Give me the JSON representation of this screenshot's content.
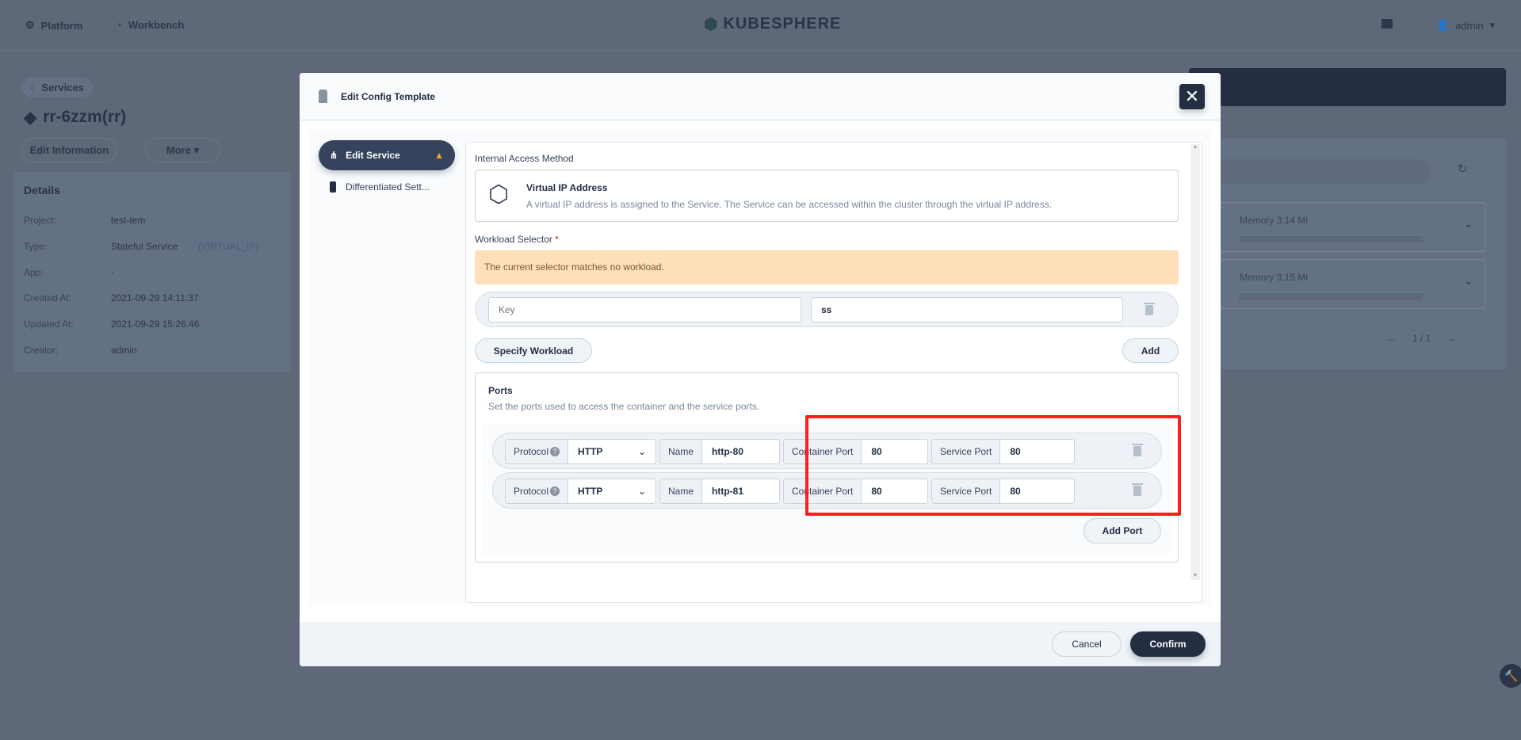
{
  "topbar": {
    "platform": "Platform",
    "workbench": "Workbench",
    "logo": "KUBESPHERE",
    "user": "admin"
  },
  "page": {
    "back": "Services",
    "title": "rr-6zzm(rr)",
    "edit_info": "Edit Information",
    "more": "More",
    "details_title": "Details",
    "details": [
      {
        "k": "Project:",
        "v": "test-tem"
      },
      {
        "k": "Type:",
        "v": "Stateful Service",
        "v2": "(VIRTUAL_IP)"
      },
      {
        "k": "App:",
        "v": "-"
      },
      {
        "k": "Created At:",
        "v": "2021-09-29 14:11:37"
      },
      {
        "k": "Updated At:",
        "v": "2021-09-29 15:26:46"
      },
      {
        "k": "Creator:",
        "v": "admin"
      }
    ],
    "pods": [
      {
        "memory": "Memory 3.14 Mi"
      },
      {
        "memory": "Memory 3.15 Mi"
      }
    ],
    "pagination": "1 / 1"
  },
  "modal": {
    "title": "Edit Config Template",
    "nav": [
      {
        "label": "Edit Service",
        "active": true,
        "warning": true
      },
      {
        "label": "Differentiated Sett..."
      }
    ],
    "access_label": "Internal Access Method",
    "access_title": "Virtual IP Address",
    "access_desc": "A virtual IP address is assigned to the Service. The Service can be accessed within the cluster through the virtual IP address.",
    "selector_label": "Workload Selector",
    "required": "*",
    "warning": "The current selector matches no workload.",
    "selector": {
      "key_placeholder": "Key",
      "value": "ss"
    },
    "specify": "Specify Workload",
    "add": "Add",
    "ports_title": "Ports",
    "ports_desc": "Set the ports used to access the container and the service ports.",
    "port_labels": {
      "protocol": "Protocol",
      "name": "Name",
      "container": "Container Port",
      "service": "Service Port"
    },
    "ports": [
      {
        "protocol": "HTTP",
        "name": "http-80",
        "container": "80",
        "service": "80"
      },
      {
        "protocol": "HTTP",
        "name": "http-81",
        "container": "80",
        "service": "80"
      }
    ],
    "add_port": "Add Port",
    "cancel": "Cancel",
    "confirm": "Confirm"
  },
  "colors": {
    "primary": "#242e42",
    "warning_bg": "#ffdfb9",
    "highlight": "#ff1e1e"
  }
}
